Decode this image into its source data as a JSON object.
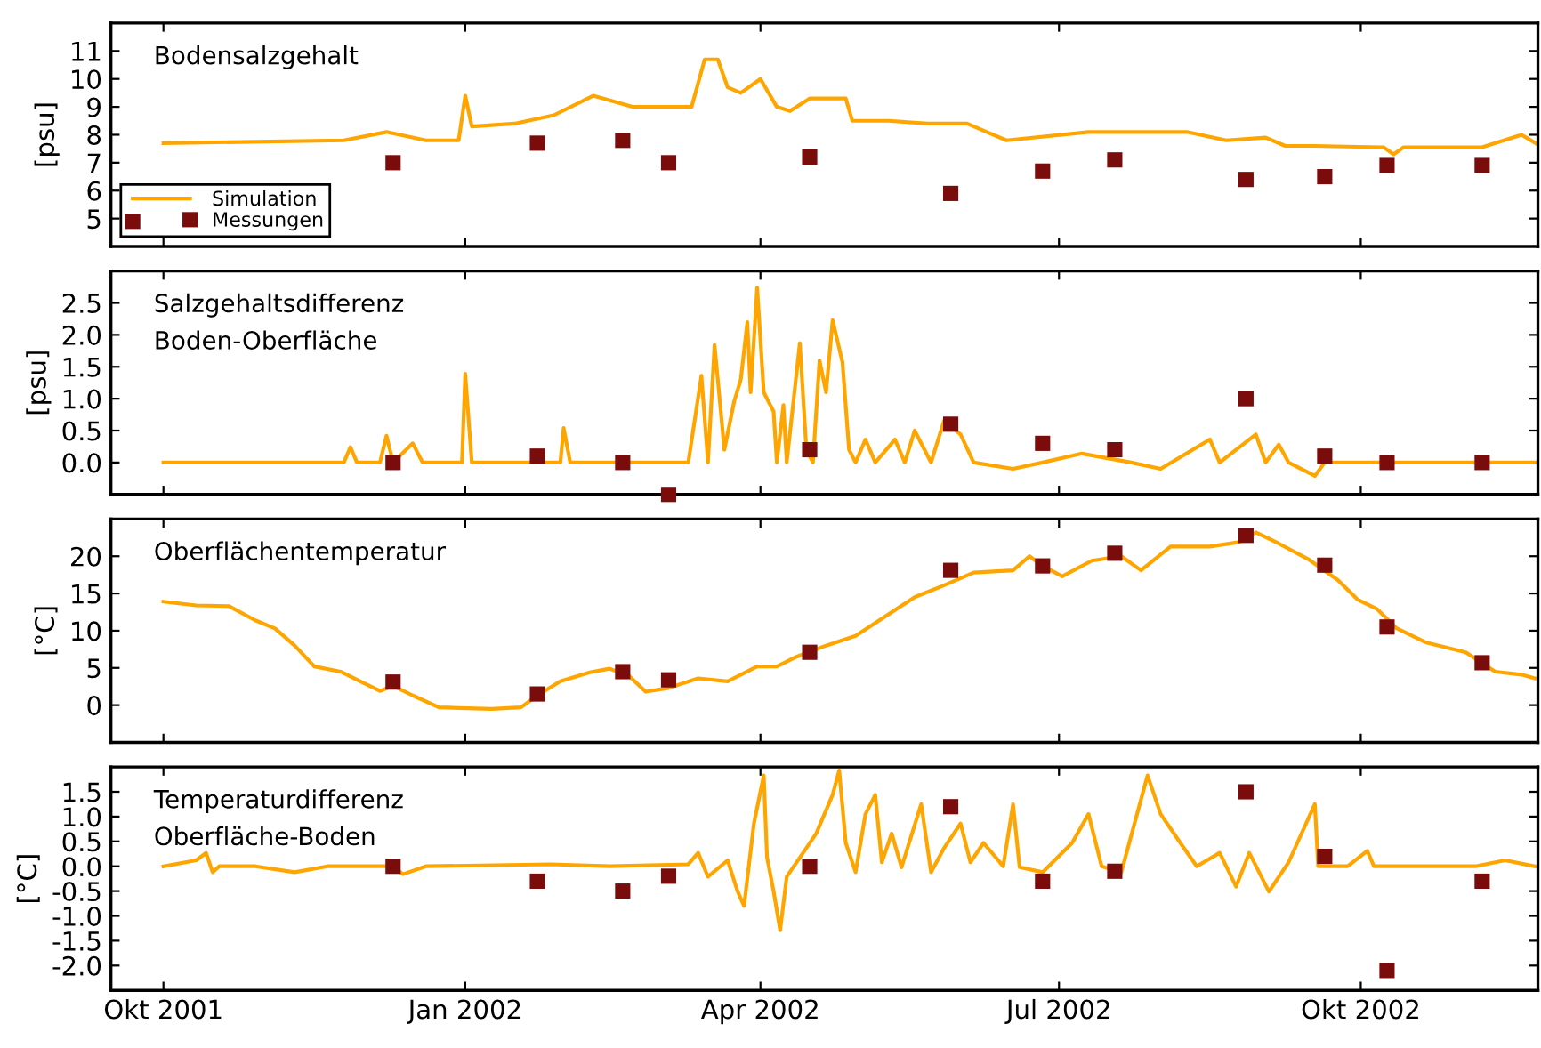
{
  "chart_data": [
    {
      "type": "line",
      "title": "Bodensalzgehalt",
      "ylabel": "[psu]",
      "xlim": [
        "2001-09-15",
        "2002-11-24"
      ],
      "ylim": [
        4,
        12
      ],
      "yticks": [
        5,
        6,
        7,
        8,
        9,
        10,
        11
      ],
      "xticks": [
        {
          "value": "2001-10-01",
          "label": null
        },
        {
          "value": "2002-01-01",
          "label": null
        },
        {
          "value": "2002-04-01",
          "label": null
        },
        {
          "value": "2002-07-01",
          "label": null
        },
        {
          "value": "2002-10-01",
          "label": null
        }
      ],
      "tick_labels": "y",
      "grid": false,
      "legend": "bottom left",
      "series": [
        {
          "name": "Simulation",
          "color": "#ffa500",
          "x": [
            "2001-10-01",
            "2001-11-25",
            "2001-12-08",
            "2001-12-20",
            "2001-12-30",
            "2002-01-01",
            "2002-01-03",
            "2002-01-16",
            "2002-01-28",
            "2002-02-09",
            "2002-02-21",
            "2002-03-11",
            "2002-03-15",
            "2002-03-19",
            "2002-03-22",
            "2002-03-26",
            "2002-04-01",
            "2002-04-06",
            "2002-04-10",
            "2002-04-16",
            "2002-04-27",
            "2002-04-29",
            "2002-05-10",
            "2002-05-22",
            "2002-06-03",
            "2002-06-09",
            "2002-06-15",
            "2002-07-10",
            "2002-08-09",
            "2002-08-21",
            "2002-09-02",
            "2002-09-08",
            "2002-09-17",
            "2002-10-08",
            "2002-10-11",
            "2002-10-14",
            "2002-11-07",
            "2002-11-19",
            "2002-11-24"
          ],
          "values": [
            7.7,
            7.8,
            8.1,
            7.8,
            7.8,
            9.4,
            8.3,
            8.4,
            8.7,
            9.4,
            9.0,
            9.0,
            10.7,
            10.7,
            9.7,
            9.5,
            10.0,
            9.0,
            8.85,
            9.3,
            9.3,
            8.5,
            8.5,
            8.4,
            8.4,
            8.1,
            7.8,
            8.1,
            8.1,
            7.8,
            7.9,
            7.6,
            7.6,
            7.55,
            7.3,
            7.55,
            7.55,
            8.0,
            7.65
          ]
        },
        {
          "name": "Messungen",
          "type": "scatter",
          "marker": "square",
          "color": "#7b0c0c",
          "x": [
            "2001-12-10",
            "2002-01-23",
            "2002-02-18",
            "2002-03-04",
            "2002-04-16",
            "2002-05-29",
            "2002-06-26",
            "2002-07-18",
            "2002-08-27",
            "2002-09-20",
            "2002-10-09",
            "2002-11-07"
          ],
          "values": [
            7.0,
            7.7,
            7.8,
            7.0,
            7.2,
            5.9,
            6.7,
            7.1,
            6.4,
            6.5,
            6.9,
            6.9
          ]
        }
      ]
    },
    {
      "type": "line",
      "title": "Salzgehaltsdifferenz\nBoden-Oberfläche",
      "ylabel": "[psu]",
      "xlim": [
        "2001-09-15",
        "2002-11-24"
      ],
      "ylim": [
        -0.5,
        3.0
      ],
      "yticks": [
        {
          "value": 0,
          "label": "0.0"
        },
        0.5,
        {
          "value": 1,
          "label": "1.0"
        },
        1.5,
        {
          "value": 2,
          "label": "2.0"
        },
        2.5
      ],
      "xticks": [
        {
          "value": "2001-10-01",
          "label": null
        },
        {
          "value": "2002-01-01",
          "label": null
        },
        {
          "value": "2002-04-01",
          "label": null
        },
        {
          "value": "2002-07-01",
          "label": null
        },
        {
          "value": "2002-10-01",
          "label": null
        }
      ],
      "tick_labels": "y",
      "grid": false,
      "series": [
        {
          "color": "#ffa500",
          "x": [
            "2001-10-01",
            "2001-11-25",
            "2001-11-27",
            "2001-11-29",
            "2001-12-06",
            "2001-12-08",
            "2001-12-10",
            "2001-12-16",
            "2001-12-19",
            "2001-12-31",
            "2002-01-01",
            "2002-01-03",
            "2002-01-30",
            "2002-01-31",
            "2002-02-02",
            "2002-03-10",
            "2002-03-14",
            "2002-03-16",
            "2002-03-18",
            "2002-03-19",
            "2002-03-21",
            "2002-03-24",
            "2002-03-26",
            "2002-03-28",
            "2002-03-29",
            "2002-03-31",
            "2002-04-02",
            "2002-04-05",
            "2002-04-06",
            "2002-04-08",
            "2002-04-09",
            "2002-04-13",
            "2002-04-15",
            "2002-04-17",
            "2002-04-19",
            "2002-04-21",
            "2002-04-23",
            "2002-04-26",
            "2002-04-28",
            "2002-04-30",
            "2002-05-03",
            "2002-05-06",
            "2002-05-12",
            "2002-05-15",
            "2002-05-18",
            "2002-05-23",
            "2002-05-27",
            "2002-06-01",
            "2002-06-05",
            "2002-06-17",
            "2002-06-26",
            "2002-07-08",
            "2002-07-23",
            "2002-08-01",
            "2002-08-16",
            "2002-08-19",
            "2002-08-30",
            "2002-09-02",
            "2002-09-06",
            "2002-09-09",
            "2002-09-17",
            "2002-09-20",
            "2002-11-05",
            "2002-11-23"
          ],
          "values": [
            0,
            0,
            0.24,
            0,
            0,
            0.42,
            0,
            0.3,
            0,
            0,
            1.39,
            0,
            0,
            0.54,
            0,
            0,
            1.36,
            0,
            1.84,
            1.3,
            0.2,
            0.96,
            1.3,
            2.2,
            1.1,
            2.74,
            1.1,
            0.8,
            0,
            0.9,
            0,
            1.87,
            0.2,
            0,
            1.6,
            1.1,
            2.23,
            1.57,
            0.2,
            0,
            0.36,
            0,
            0.36,
            0,
            0.5,
            0,
            0.66,
            0.44,
            0,
            -0.1,
            0,
            0.14,
            0,
            -0.1,
            0.36,
            0,
            0.44,
            0,
            0.28,
            0,
            -0.21,
            0,
            0,
            0
          ]
        },
        {
          "type": "scatter",
          "marker": "square",
          "color": "#7b0c0c",
          "x": [
            "2001-12-10",
            "2002-01-23",
            "2002-02-18",
            "2002-03-04",
            "2002-04-16",
            "2002-05-29",
            "2002-06-26",
            "2002-07-18",
            "2002-08-27",
            "2002-09-20",
            "2002-10-09",
            "2002-11-07"
          ],
          "values": [
            0.0,
            0.1,
            0.0,
            -0.5,
            0.2,
            0.6,
            0.3,
            0.2,
            1.0,
            0.1,
            0.0,
            0.0
          ]
        }
      ]
    },
    {
      "type": "line",
      "title": "Oberflächentemperatur",
      "ylabel": "[°C]",
      "xlim": [
        "2001-09-15",
        "2002-11-24"
      ],
      "ylim": [
        -5,
        25
      ],
      "yticks": [
        0,
        5,
        10,
        15,
        20
      ],
      "xticks": [
        {
          "value": "2001-10-01",
          "label": null
        },
        {
          "value": "2002-01-01",
          "label": null
        },
        {
          "value": "2002-04-01",
          "label": null
        },
        {
          "value": "2002-07-01",
          "label": null
        },
        {
          "value": "2002-10-01",
          "label": null
        }
      ],
      "tick_labels": "y",
      "grid": false,
      "series": [
        {
          "color": "#ffa500",
          "x": [
            "2001-10-01",
            "2001-10-11",
            "2001-10-21",
            "2001-10-29",
            "2001-11-04",
            "2001-11-10",
            "2001-11-16",
            "2001-11-24",
            "2001-11-30",
            "2001-12-06",
            "2001-12-10",
            "2001-12-16",
            "2001-12-24",
            "2002-01-09",
            "2002-01-18",
            "2002-01-23",
            "2002-01-30",
            "2002-02-08",
            "2002-02-14",
            "2002-02-20",
            "2002-02-25",
            "2002-03-04",
            "2002-03-13",
            "2002-03-22",
            "2002-03-31",
            "2002-04-06",
            "2002-04-12",
            "2002-04-21",
            "2002-04-30",
            "2002-05-09",
            "2002-05-18",
            "2002-05-27",
            "2002-06-05",
            "2002-06-17",
            "2002-06-22",
            "2002-06-26",
            "2002-07-02",
            "2002-07-11",
            "2002-07-20",
            "2002-07-26",
            "2002-08-04",
            "2002-08-16",
            "2002-08-25",
            "2002-08-30",
            "2002-09-06",
            "2002-09-15",
            "2002-09-24",
            "2002-09-30",
            "2002-10-06",
            "2002-10-12",
            "2002-10-21",
            "2002-11-02",
            "2002-11-11",
            "2002-11-19",
            "2002-11-23"
          ],
          "values": [
            13.9,
            13.4,
            13.3,
            11.4,
            10.3,
            8.0,
            5.2,
            4.5,
            3.2,
            1.9,
            2.6,
            1.3,
            -0.3,
            -0.5,
            -0.3,
            1.3,
            3.2,
            4.4,
            4.9,
            3.9,
            1.8,
            2.3,
            3.6,
            3.2,
            5.2,
            5.2,
            6.5,
            8.0,
            9.3,
            11.9,
            14.5,
            16.1,
            17.8,
            18.1,
            20.0,
            18.7,
            17.3,
            19.4,
            20.0,
            18.1,
            21.3,
            21.3,
            21.9,
            23.2,
            21.7,
            19.6,
            16.8,
            14.2,
            12.9,
            10.3,
            8.4,
            7.1,
            4.5,
            4.1,
            3.6
          ]
        },
        {
          "type": "scatter",
          "marker": "square",
          "color": "#7b0c0c",
          "x": [
            "2001-12-10",
            "2002-01-23",
            "2002-02-18",
            "2002-03-04",
            "2002-04-16",
            "2002-05-29",
            "2002-06-26",
            "2002-07-18",
            "2002-08-27",
            "2002-09-20",
            "2002-10-09",
            "2002-11-07"
          ],
          "values": [
            3.1,
            1.5,
            4.5,
            3.4,
            7.1,
            18.1,
            18.7,
            20.4,
            22.8,
            18.8,
            10.5,
            5.7
          ]
        }
      ]
    },
    {
      "type": "line",
      "title": "Temperaturdifferenz\nOberfläche-Boden",
      "ylabel": "[°C]",
      "xlim": [
        "2001-09-15",
        "2002-11-24"
      ],
      "ylim": [
        -2.5,
        2.0
      ],
      "yticks": [
        {
          "value": -2,
          "label": "-2.0"
        },
        {
          "value": -1.5,
          "label": "-1.5"
        },
        {
          "value": -1,
          "label": "-1.0"
        },
        {
          "value": -0.5,
          "label": "-0.5"
        },
        {
          "value": 0,
          "label": "0.0"
        },
        0.5,
        {
          "value": 1,
          "label": "1.0"
        },
        1.5
      ],
      "xticks": [
        {
          "value": "2001-10-01",
          "label": "Okt 2001"
        },
        {
          "value": "2002-01-01",
          "label": "Jan 2002"
        },
        {
          "value": "2002-04-01",
          "label": "Apr 2002"
        },
        {
          "value": "2002-07-01",
          "label": "Jul 2002"
        },
        {
          "value": "2002-10-01",
          "label": "Okt 2002"
        }
      ],
      "grid": false,
      "series": [
        {
          "color": "#ffa500",
          "x": [
            "2001-10-01",
            "2001-10-11",
            "2001-10-14",
            "2001-10-16",
            "2001-10-18",
            "2001-10-29",
            "2001-11-10",
            "2001-11-20",
            "2001-12-10",
            "2001-12-13",
            "2001-12-20",
            "2002-01-27",
            "2002-02-14",
            "2002-03-10",
            "2002-03-13",
            "2002-03-16",
            "2002-03-22",
            "2002-03-25",
            "2002-03-27",
            "2002-03-30",
            "2002-04-02",
            "2002-04-03",
            "2002-04-05",
            "2002-04-07",
            "2002-04-09",
            "2002-04-14",
            "2002-04-18",
            "2002-04-23",
            "2002-04-25",
            "2002-04-27",
            "2002-04-30",
            "2002-05-03",
            "2002-05-06",
            "2002-05-08",
            "2002-05-11",
            "2002-05-14",
            "2002-05-20",
            "2002-05-23",
            "2002-05-27",
            "2002-06-01",
            "2002-06-04",
            "2002-06-08",
            "2002-06-14",
            "2002-06-17",
            "2002-06-19",
            "2002-06-26",
            "2002-07-05",
            "2002-07-10",
            "2002-07-14",
            "2002-07-20",
            "2002-07-28",
            "2002-08-01",
            "2002-08-07",
            "2002-08-12",
            "2002-08-19",
            "2002-08-24",
            "2002-08-28",
            "2002-09-03",
            "2002-09-09",
            "2002-09-17",
            "2002-09-18",
            "2002-09-27",
            "2002-10-03",
            "2002-10-05",
            "2002-11-05",
            "2002-11-14",
            "2002-11-23"
          ],
          "values": [
            0,
            0.12,
            0.27,
            -0.12,
            0,
            0,
            -0.12,
            0,
            0,
            -0.16,
            0,
            0.04,
            0,
            0.04,
            0.27,
            -0.21,
            0.12,
            -0.5,
            -0.8,
            0.86,
            1.83,
            0.18,
            -0.5,
            -1.29,
            -0.21,
            0.27,
            0.66,
            1.44,
            1.93,
            0.47,
            -0.12,
            1.05,
            1.44,
            0.08,
            0.66,
            -0.02,
            1.25,
            -0.12,
            0.37,
            0.86,
            0.08,
            0.47,
            0,
            1.25,
            -0.02,
            -0.12,
            0.47,
            1.05,
            0,
            -0.12,
            1.83,
            1.05,
            0.47,
            0,
            0.27,
            -0.41,
            0.27,
            -0.51,
            0.08,
            1.25,
            0,
            0,
            0.31,
            0,
            0,
            0.12,
            0
          ]
        },
        {
          "type": "scatter",
          "marker": "square",
          "color": "#7b0c0c",
          "x": [
            "2001-12-10",
            "2002-01-23",
            "2002-02-18",
            "2002-03-04",
            "2002-04-16",
            "2002-05-29",
            "2002-06-26",
            "2002-07-18",
            "2002-08-27",
            "2002-09-20",
            "2002-10-09",
            "2002-11-07"
          ],
          "values": [
            0.0,
            -0.3,
            -0.5,
            -0.2,
            0.0,
            1.2,
            -0.3,
            -0.1,
            1.5,
            0.2,
            -2.1,
            -0.3
          ]
        }
      ]
    }
  ]
}
